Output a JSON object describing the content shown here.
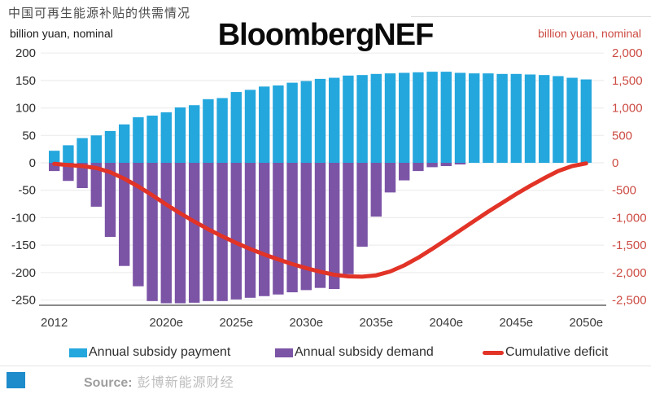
{
  "page": {
    "title_cn": "中国可再生能源补贴的供需情况",
    "watermark": "BloombergNEF",
    "left_axis_label": "billion yuan, nominal",
    "right_axis_label": "billion yuan, nominal",
    "source_label": "Source:",
    "source_name": "彭博新能源财经"
  },
  "colors": {
    "payment_blue": "#24a7dd",
    "demand_purple": "#7b54a6",
    "deficit_red": "#e23327",
    "axis_red_text": "#cc4b43",
    "gridline": "#ededed",
    "baseline": "#8a8a8a",
    "tick_text": "#2b2b2b",
    "xlabel_text": "#3c3c3c"
  },
  "legend": [
    {
      "label": "Annual subsidy payment",
      "type": "bar",
      "color": "#24a7dd"
    },
    {
      "label": "Annual subsidy demand",
      "type": "bar",
      "color": "#7b54a6"
    },
    {
      "label": "Cumulative deficit",
      "type": "line",
      "color": "#e23327"
    }
  ],
  "chart_data": {
    "type": "bar",
    "title": "中国可再生能源补贴的供需情况",
    "x": [
      2012,
      2013,
      2014,
      2015,
      2016,
      2017,
      2018,
      2019,
      2020,
      2021,
      2022,
      2023,
      2024,
      2025,
      2026,
      2027,
      2028,
      2029,
      2030,
      2031,
      2032,
      2033,
      2034,
      2035,
      2036,
      2037,
      2038,
      2039,
      2040,
      2041,
      2042,
      2043,
      2044,
      2045,
      2046,
      2047,
      2048,
      2049,
      2050
    ],
    "x_tick_labels": [
      "2012",
      "2020e",
      "2025e",
      "2030e",
      "2035e",
      "2040e",
      "2045e",
      "2050e"
    ],
    "left_axis": {
      "label": "billion yuan, nominal",
      "ticks": [
        200,
        150,
        100,
        50,
        0,
        -50,
        -100,
        -150,
        -200,
        -250
      ],
      "range": [
        -260,
        200
      ],
      "grid": true
    },
    "right_axis": {
      "label": "billion yuan, nominal",
      "ticks": [
        2000,
        1500,
        1000,
        500,
        0,
        -500,
        -1000,
        -1500,
        -2000,
        -2500
      ],
      "range": [
        -2600,
        2000
      ]
    },
    "legend_position": "bottom",
    "series": [
      {
        "name": "Annual subsidy payment",
        "type": "bar",
        "axis": "left",
        "color": "#24a7dd",
        "values": [
          22,
          32,
          45,
          50,
          58,
          70,
          83,
          86,
          92,
          101,
          105,
          116,
          118,
          129,
          133,
          139,
          141,
          146,
          149,
          153,
          155,
          159,
          160,
          162,
          163,
          164,
          165,
          166,
          166,
          164,
          163,
          163,
          162,
          162,
          161,
          160,
          158,
          155,
          152
        ]
      },
      {
        "name": "Annual subsidy demand",
        "type": "bar",
        "axis": "left",
        "color": "#7b54a6",
        "values": [
          -15,
          -33,
          -46,
          -80,
          -135,
          -188,
          -225,
          -252,
          -256,
          -256,
          -255,
          -252,
          -252,
          -249,
          -246,
          -243,
          -240,
          -236,
          -232,
          -228,
          -230,
          -203,
          -153,
          -98,
          -54,
          -32,
          -15,
          -8,
          -6,
          -3,
          0,
          0,
          0,
          0,
          0,
          0,
          0,
          0,
          0
        ]
      },
      {
        "name": "Cumulative deficit",
        "type": "line",
        "axis": "right",
        "color": "#e23327",
        "values": [
          -20,
          -40,
          -60,
          -95,
          -170,
          -290,
          -430,
          -590,
          -760,
          -920,
          -1070,
          -1210,
          -1340,
          -1460,
          -1570,
          -1670,
          -1760,
          -1845,
          -1920,
          -1985,
          -2040,
          -2070,
          -2075,
          -2050,
          -1980,
          -1870,
          -1730,
          -1570,
          -1400,
          -1230,
          -1060,
          -890,
          -730,
          -570,
          -420,
          -280,
          -150,
          -60,
          -10
        ]
      }
    ]
  }
}
